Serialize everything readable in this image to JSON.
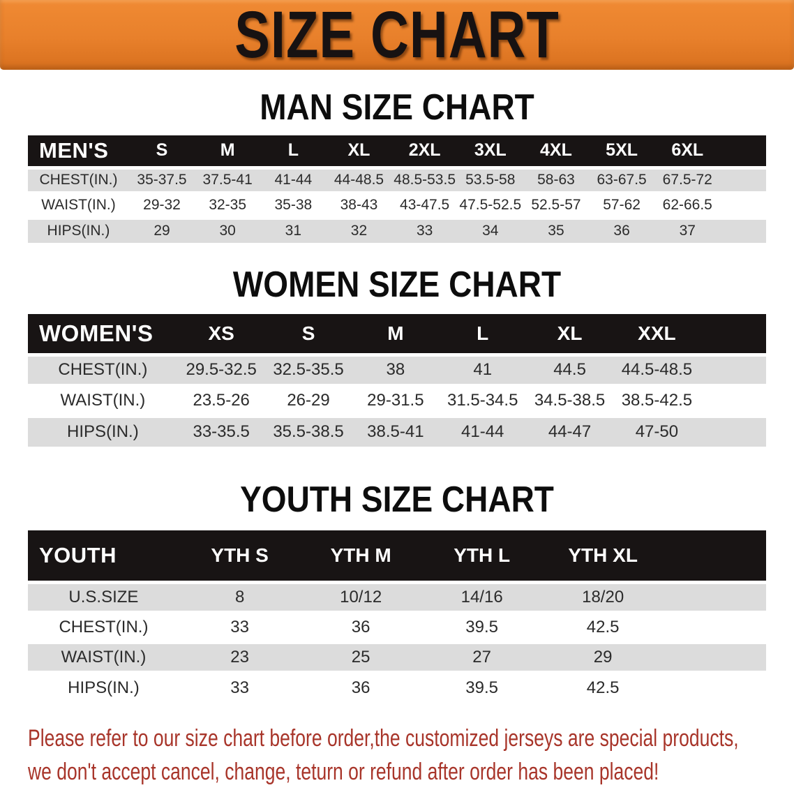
{
  "banner": {
    "title": "SIZE CHART"
  },
  "colors": {
    "banner_bg": "#E8802B",
    "banner_bg_light": "#F08A33",
    "banner_bg_dark": "#D8701E",
    "banner_text": "#171212",
    "header_bg": "#181414",
    "header_text": "#FFFFFF",
    "stripe": "#DCDCDC",
    "heading_text": "#0D0D0D",
    "body_text": "#2B2B2B",
    "notice_text": "#A8352A"
  },
  "sections": [
    {
      "heading": "MAN SIZE CHART",
      "table": {
        "header_label": "MEN'S",
        "columns": [
          "S",
          "M",
          "L",
          "XL",
          "2XL",
          "3XL",
          "4XL",
          "5XL",
          "6XL"
        ],
        "rows": [
          {
            "label": "CHEST(IN.)",
            "values": [
              "35-37.5",
              "37.5-41",
              "41-44",
              "44-48.5",
              "48.5-53.5",
              "53.5-58",
              "58-63",
              "63-67.5",
              "67.5-72"
            ]
          },
          {
            "label": "WAIST(IN.)",
            "values": [
              "29-32",
              "32-35",
              "35-38",
              "38-43",
              "43-47.5",
              "47.5-52.5",
              "52.5-57",
              "57-62",
              "62-66.5"
            ]
          },
          {
            "label": "HIPS(IN.)",
            "values": [
              "29",
              "30",
              "31",
              "32",
              "33",
              "34",
              "35",
              "36",
              "37"
            ]
          }
        ]
      }
    },
    {
      "heading": "WOMEN SIZE CHART",
      "table": {
        "header_label": "WOMEN'S",
        "columns": [
          "XS",
          "S",
          "M",
          "L",
          "XL",
          "XXL"
        ],
        "rows": [
          {
            "label": "CHEST(IN.)",
            "values": [
              "29.5-32.5",
              "32.5-35.5",
              "38",
              "41",
              "44.5",
              "44.5-48.5"
            ]
          },
          {
            "label": "WAIST(IN.)",
            "values": [
              "23.5-26",
              "26-29",
              "29-31.5",
              "31.5-34.5",
              "34.5-38.5",
              "38.5-42.5"
            ]
          },
          {
            "label": "HIPS(IN.)",
            "values": [
              "33-35.5",
              "35.5-38.5",
              "38.5-41",
              "41-44",
              "44-47",
              "47-50"
            ]
          }
        ]
      }
    },
    {
      "heading": "YOUTH SIZE CHART",
      "table": {
        "header_label": "YOUTH",
        "columns": [
          "YTH S",
          "YTH M",
          "YTH L",
          "YTH XL"
        ],
        "rows": [
          {
            "label": "U.S.SIZE",
            "values": [
              "8",
              "10/12",
              "14/16",
              "18/20"
            ]
          },
          {
            "label": "CHEST(IN.)",
            "values": [
              "33",
              "36",
              "39.5",
              "42.5"
            ]
          },
          {
            "label": "WAIST(IN.)",
            "values": [
              "23",
              "25",
              "27",
              "29"
            ]
          },
          {
            "label": "HIPS(IN.)",
            "values": [
              "33",
              "36",
              "39.5",
              "42.5"
            ]
          }
        ]
      }
    }
  ],
  "footer": {
    "line1": "Please refer to our size chart before order,the customized jerseys are special products,",
    "line2": "we don't accept cancel, change, teturn or refund after order has been placed!"
  }
}
